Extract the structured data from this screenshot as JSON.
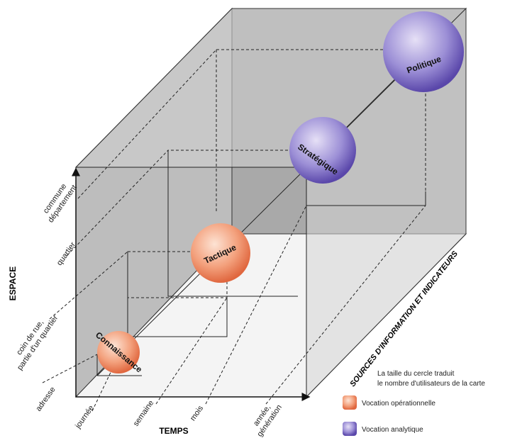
{
  "nodes": [
    {
      "label": "Connaissance"
    },
    {
      "label": "Tactique"
    },
    {
      "label": "Stratégique"
    },
    {
      "label": "Politique"
    }
  ],
  "axes": {
    "vertical": {
      "title": "ESPACE",
      "labels": [
        [
          "adresse"
        ],
        [
          "coin de rue,",
          "partie d'un quartier"
        ],
        [
          "quartier"
        ],
        [
          "commune",
          "département"
        ]
      ]
    },
    "horizontal": {
      "title": "TEMPS",
      "labels": [
        [
          "journée"
        ],
        [
          "semaine"
        ],
        [
          "mois"
        ],
        [
          "année,",
          "génération"
        ]
      ]
    },
    "depth": {
      "title": "SOURCES D'INFORMATION ET INDICATEURS"
    }
  },
  "legend": {
    "note": [
      "La taille du cercle traduit",
      "le nombre d'utilisateurs de la carte"
    ],
    "items": [
      {
        "label": "Vocation opérationnelle"
      },
      {
        "label": "Vocation analytique"
      }
    ]
  }
}
